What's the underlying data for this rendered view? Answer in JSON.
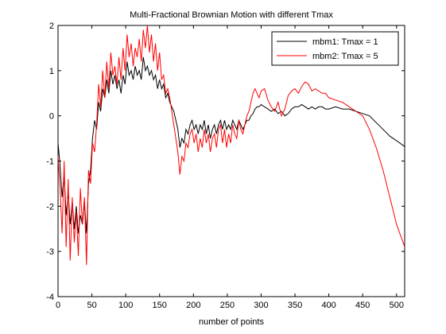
{
  "chart_data": {
    "type": "line",
    "title": "Multi-Fractional Brownian Motion with different Tmax",
    "xlabel": "number of points",
    "ylabel": "",
    "xlim": [
      0,
      512
    ],
    "ylim": [
      -4,
      2
    ],
    "xticks": [
      0,
      50,
      100,
      150,
      200,
      250,
      300,
      350,
      400,
      450,
      500
    ],
    "yticks": [
      -4,
      -3,
      -2,
      -1,
      0,
      1,
      2
    ],
    "grid": false,
    "legend_position": "top-right",
    "series": [
      {
        "name": "mbm1: Tmax = 1",
        "color": "#000000",
        "x": [
          0,
          3,
          6,
          9,
          12,
          15,
          18,
          21,
          24,
          27,
          30,
          33,
          36,
          39,
          42,
          45,
          48,
          51,
          54,
          57,
          60,
          63,
          66,
          69,
          72,
          75,
          78,
          81,
          84,
          87,
          90,
          93,
          96,
          99,
          102,
          105,
          108,
          111,
          114,
          117,
          120,
          123,
          126,
          129,
          132,
          135,
          138,
          141,
          144,
          147,
          150,
          153,
          156,
          159,
          162,
          165,
          168,
          171,
          174,
          177,
          180,
          183,
          186,
          189,
          192,
          195,
          198,
          201,
          204,
          207,
          210,
          213,
          216,
          219,
          222,
          225,
          228,
          231,
          234,
          237,
          240,
          243,
          246,
          249,
          252,
          255,
          258,
          261,
          264,
          267,
          270,
          273,
          276,
          279,
          282,
          285,
          288,
          291,
          294,
          297,
          300,
          305,
          310,
          315,
          320,
          325,
          330,
          335,
          340,
          345,
          350,
          355,
          360,
          365,
          370,
          375,
          380,
          385,
          390,
          395,
          400,
          410,
          420,
          430,
          440,
          450,
          460,
          470,
          480,
          490,
          500,
          512
        ],
        "values": [
          -0.6,
          -1.1,
          -1.8,
          -1.3,
          -2.2,
          -1.7,
          -2.4,
          -1.9,
          -2.5,
          -2.0,
          -2.6,
          -2.2,
          -2.4,
          -1.9,
          -2.6,
          -1.5,
          -1.2,
          -0.5,
          -0.1,
          -0.3,
          0.3,
          0.1,
          0.6,
          0.4,
          0.8,
          0.5,
          1.0,
          0.7,
          0.9,
          0.6,
          0.8,
          0.5,
          0.9,
          0.7,
          1.2,
          0.9,
          1.0,
          0.8,
          1.1,
          0.9,
          1.0,
          0.8,
          1.3,
          1.0,
          1.1,
          0.9,
          1.0,
          0.8,
          0.9,
          0.6,
          0.8,
          0.6,
          0.7,
          0.4,
          0.5,
          0.3,
          0.2,
          0.1,
          -0.1,
          -0.3,
          -0.7,
          -0.5,
          -0.6,
          -0.3,
          -0.4,
          -0.2,
          -0.1,
          -0.3,
          -0.2,
          -0.4,
          -0.2,
          -0.3,
          -0.1,
          -0.4,
          -0.2,
          -0.5,
          -0.3,
          -0.2,
          -0.4,
          -0.2,
          -0.1,
          -0.3,
          -0.1,
          -0.3,
          -0.2,
          -0.3,
          -0.1,
          -0.2,
          -0.3,
          -0.1,
          -0.2,
          -0.3,
          -0.2,
          -0.1,
          -0.1,
          0.0,
          0.05,
          0.15,
          0.2,
          0.2,
          0.25,
          0.2,
          0.15,
          0.1,
          0.15,
          0.05,
          0.1,
          0.0,
          0.05,
          0.15,
          0.2,
          0.2,
          0.25,
          0.2,
          0.15,
          0.2,
          0.15,
          0.2,
          0.2,
          0.15,
          0.15,
          0.2,
          0.15,
          0.15,
          0.1,
          0.05,
          0.0,
          -0.15,
          -0.3,
          -0.45,
          -0.55,
          -0.68
        ]
      },
      {
        "name": "mbm2: Tmax = 5",
        "color": "#ff0000",
        "x": [
          0,
          3,
          6,
          9,
          12,
          15,
          18,
          21,
          24,
          27,
          30,
          33,
          36,
          39,
          42,
          45,
          48,
          51,
          54,
          57,
          60,
          63,
          66,
          69,
          72,
          75,
          78,
          81,
          84,
          87,
          90,
          93,
          96,
          99,
          102,
          105,
          108,
          111,
          114,
          117,
          120,
          123,
          126,
          129,
          132,
          135,
          138,
          141,
          144,
          147,
          150,
          153,
          156,
          159,
          162,
          165,
          168,
          171,
          174,
          177,
          180,
          183,
          186,
          189,
          192,
          195,
          198,
          201,
          204,
          207,
          210,
          213,
          216,
          219,
          222,
          225,
          228,
          231,
          234,
          237,
          240,
          243,
          246,
          249,
          252,
          255,
          258,
          261,
          264,
          267,
          270,
          273,
          276,
          279,
          282,
          285,
          288,
          291,
          294,
          297,
          300,
          305,
          310,
          315,
          320,
          325,
          330,
          335,
          340,
          345,
          350,
          355,
          360,
          365,
          370,
          375,
          380,
          385,
          390,
          395,
          400,
          410,
          420,
          430,
          440,
          450,
          460,
          470,
          480,
          490,
          500,
          512
        ],
        "values": [
          -0.9,
          -1.6,
          -2.6,
          -1.0,
          -2.9,
          -1.4,
          -3.2,
          -1.8,
          -2.8,
          -2.1,
          -3.1,
          -1.6,
          -2.4,
          -1.8,
          -3.3,
          -1.2,
          -1.5,
          -0.6,
          -0.8,
          -0.2,
          0.7,
          0.2,
          1.0,
          0.4,
          1.2,
          0.6,
          1.4,
          0.9,
          1.1,
          0.7,
          1.3,
          0.8,
          1.5,
          1.0,
          1.8,
          1.3,
          1.6,
          1.1,
          1.5,
          1.3,
          1.7,
          1.2,
          1.9,
          1.5,
          2.0,
          1.4,
          1.8,
          1.2,
          1.6,
          1.0,
          1.4,
          0.8,
          0.9,
          0.5,
          0.6,
          0.4,
          0.1,
          -0.2,
          -0.5,
          -0.8,
          -1.3,
          -0.9,
          -1.0,
          -0.6,
          -0.7,
          -0.4,
          -0.3,
          -0.6,
          -0.4,
          -0.8,
          -0.5,
          -0.7,
          -0.3,
          -0.6,
          -0.4,
          -0.8,
          -0.5,
          -0.4,
          -0.7,
          -0.3,
          -0.2,
          -0.6,
          -0.3,
          -0.7,
          -0.4,
          -0.6,
          -0.2,
          -0.4,
          -0.5,
          -0.1,
          -0.3,
          -0.4,
          -0.2,
          0.0,
          0.1,
          0.3,
          0.5,
          0.6,
          0.5,
          0.4,
          0.55,
          0.6,
          0.35,
          0.2,
          0.1,
          0.3,
          0.0,
          0.15,
          0.45,
          0.55,
          0.6,
          0.5,
          0.65,
          0.75,
          0.7,
          0.55,
          0.6,
          0.55,
          0.5,
          0.5,
          0.4,
          0.35,
          0.3,
          0.2,
          0.1,
          0.0,
          -0.3,
          -0.7,
          -1.2,
          -1.8,
          -2.4,
          -2.9
        ]
      }
    ]
  }
}
